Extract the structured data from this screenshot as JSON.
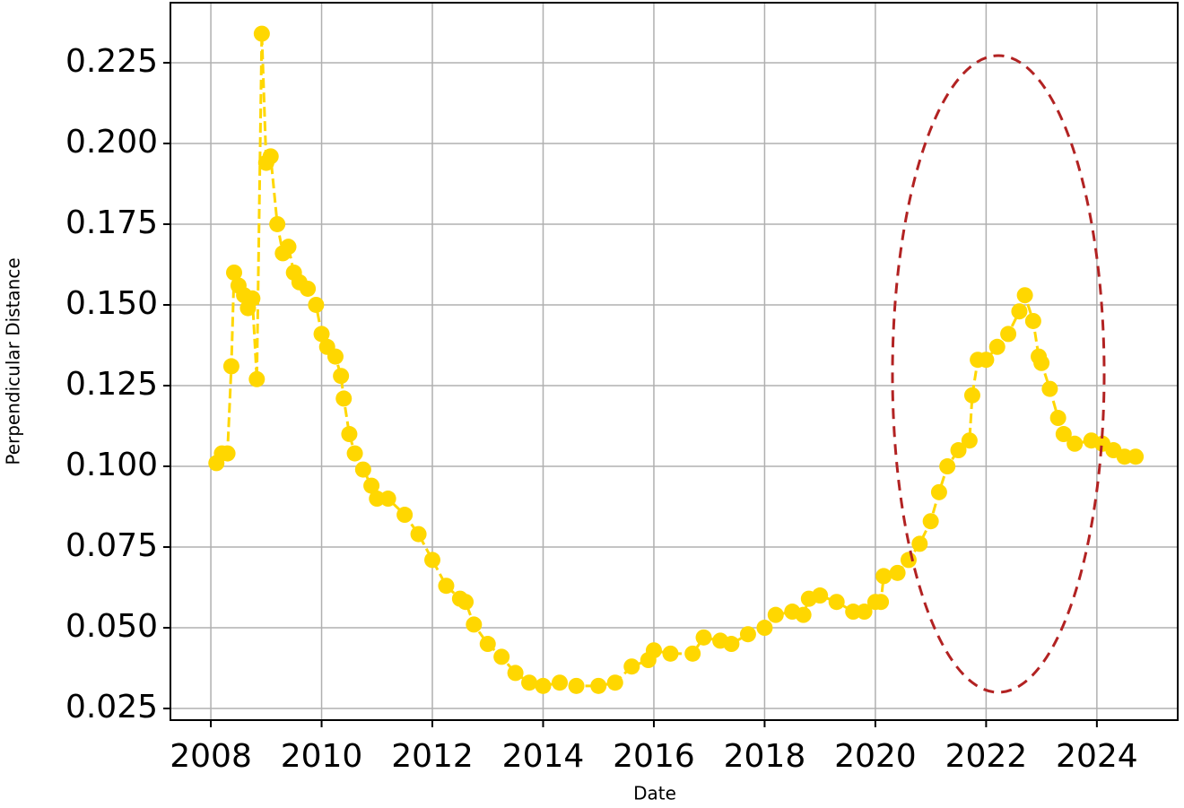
{
  "chart_data": {
    "type": "line",
    "x_label": "Date",
    "y_label": "Perpendicular Distance",
    "x": [
      2008.1,
      2008.2,
      2008.3,
      2008.37,
      2008.42,
      2008.5,
      2008.6,
      2008.67,
      2008.75,
      2008.83,
      2008.92,
      2009.0,
      2009.08,
      2009.2,
      2009.3,
      2009.4,
      2009.5,
      2009.6,
      2009.75,
      2009.9,
      2010.0,
      2010.1,
      2010.25,
      2010.35,
      2010.4,
      2010.5,
      2010.6,
      2010.75,
      2010.9,
      2011.0,
      2011.2,
      2011.5,
      2011.75,
      2012.0,
      2012.25,
      2012.5,
      2012.6,
      2012.75,
      2013.0,
      2013.25,
      2013.5,
      2013.75,
      2014.0,
      2014.3,
      2014.6,
      2015.0,
      2015.3,
      2015.6,
      2015.9,
      2016.0,
      2016.3,
      2016.7,
      2016.9,
      2017.2,
      2017.4,
      2017.7,
      2018.0,
      2018.2,
      2018.5,
      2018.7,
      2018.8,
      2019.0,
      2019.3,
      2019.6,
      2019.8,
      2020.0,
      2020.1,
      2020.15,
      2020.4,
      2020.6,
      2020.8,
      2021.0,
      2021.15,
      2021.3,
      2021.5,
      2021.7,
      2021.75,
      2021.85,
      2022.0,
      2022.2,
      2022.4,
      2022.6,
      2022.7,
      2022.85,
      2022.95,
      2023.0,
      2023.15,
      2023.3,
      2023.4,
      2023.6,
      2023.9,
      2024.1,
      2024.3,
      2024.5,
      2024.7
    ],
    "series": [
      {
        "color": "#ffd700",
        "values": [
          0.101,
          0.104,
          0.104,
          0.131,
          0.16,
          0.156,
          0.153,
          0.149,
          0.152,
          0.127,
          0.234,
          0.194,
          0.196,
          0.175,
          0.166,
          0.168,
          0.16,
          0.157,
          0.155,
          0.15,
          0.141,
          0.137,
          0.134,
          0.128,
          0.121,
          0.11,
          0.104,
          0.099,
          0.094,
          0.09,
          0.09,
          0.085,
          0.079,
          0.071,
          0.063,
          0.059,
          0.058,
          0.051,
          0.045,
          0.041,
          0.036,
          0.033,
          0.032,
          0.033,
          0.032,
          0.032,
          0.033,
          0.038,
          0.04,
          0.043,
          0.042,
          0.042,
          0.047,
          0.046,
          0.045,
          0.048,
          0.05,
          0.054,
          0.055,
          0.054,
          0.059,
          0.06,
          0.058,
          0.055,
          0.055,
          0.058,
          0.058,
          0.066,
          0.067,
          0.071,
          0.076,
          0.083,
          0.092,
          0.1,
          0.105,
          0.108,
          0.122,
          0.133,
          0.133,
          0.137,
          0.141,
          0.148,
          0.153,
          0.145,
          0.134,
          0.132,
          0.124,
          0.115,
          0.11,
          0.107,
          0.108,
          0.107,
          0.105,
          0.103,
          0.103
        ]
      }
    ],
    "xlim": [
      2007.27,
      2025.46
    ],
    "xticks": [
      2008,
      2010,
      2012,
      2014,
      2016,
      2018,
      2020,
      2022,
      2024
    ],
    "ylim": [
      0.0214,
      0.2436
    ],
    "yticks": [
      {
        "value": 0.025,
        "label": "0.025"
      },
      {
        "value": 0.05,
        "label": "0.050"
      },
      {
        "value": 0.075,
        "label": "0.075"
      },
      {
        "value": 0.1,
        "label": "0.100"
      },
      {
        "value": 0.125,
        "label": "0.125"
      },
      {
        "value": 0.15,
        "label": "0.150"
      },
      {
        "value": 0.175,
        "label": "0.175"
      },
      {
        "value": 0.2,
        "label": "0.200"
      },
      {
        "value": 0.225,
        "label": "0.225"
      }
    ],
    "grid": true
  }
}
